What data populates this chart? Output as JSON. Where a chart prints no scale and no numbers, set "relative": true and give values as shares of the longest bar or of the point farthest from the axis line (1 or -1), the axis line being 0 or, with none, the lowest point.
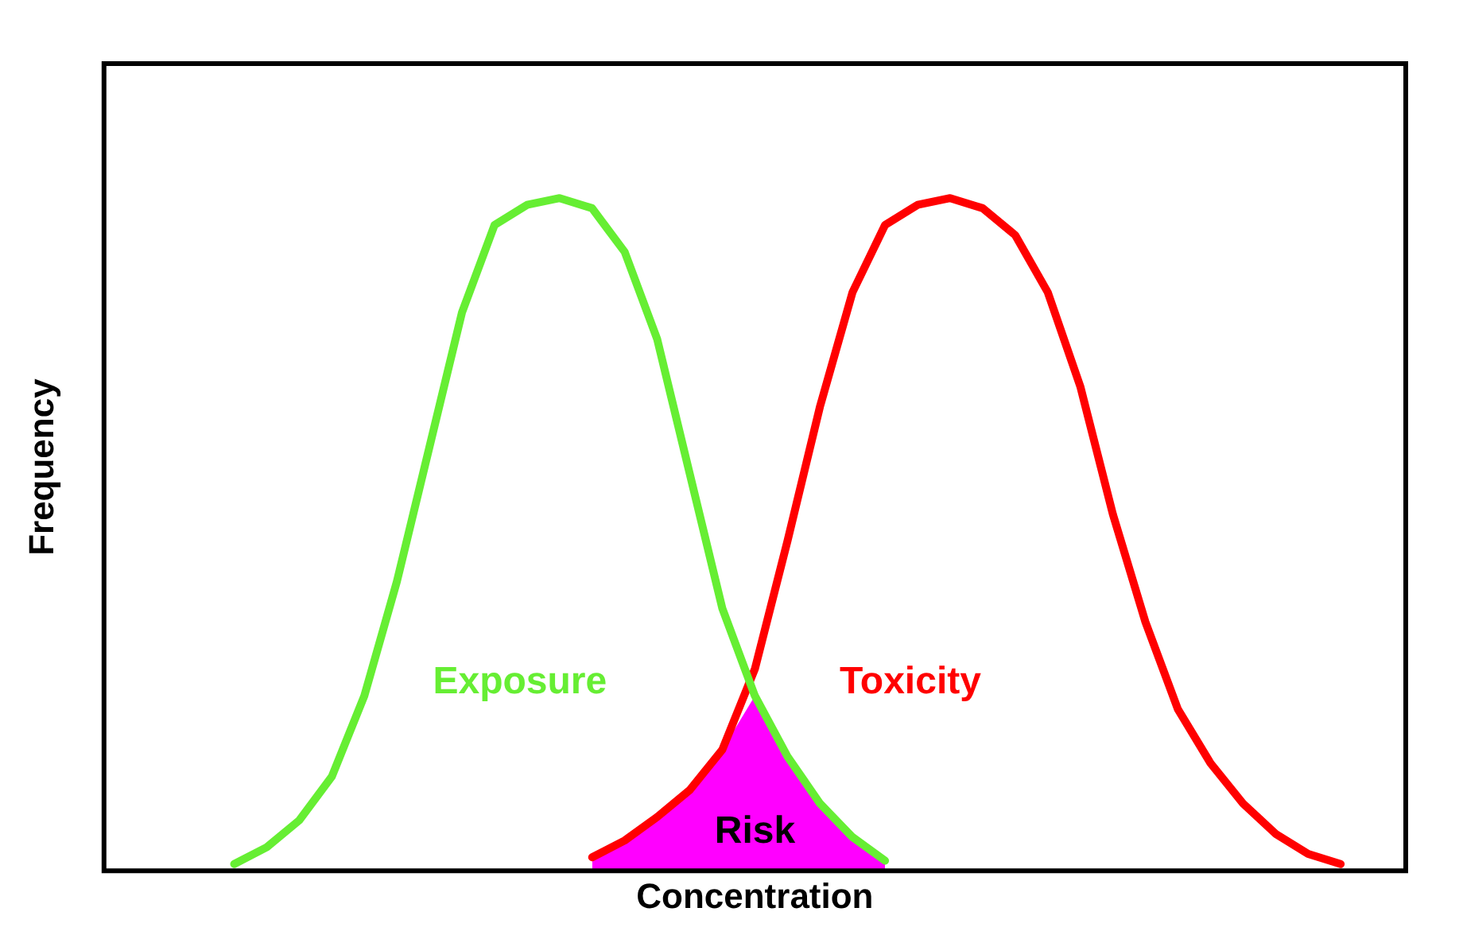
{
  "chart_data": {
    "type": "line",
    "xlabel": "Concentration",
    "ylabel": "Frequency",
    "relative": true,
    "tick_labels": false,
    "marker": "none",
    "categories": [
      null,
      null,
      null,
      null,
      null,
      null,
      null,
      null,
      null,
      null,
      null,
      null,
      null,
      null,
      null,
      null,
      null,
      null,
      null,
      null,
      null,
      null,
      null,
      null,
      null,
      null,
      null,
      null,
      null,
      null,
      null,
      null,
      null,
      null,
      null,
      null,
      null,
      null,
      null,
      null,
      null
    ],
    "series": [
      {
        "name": "Risk",
        "type": "area",
        "color": "#ff00ff",
        "values": [
          null,
          null,
          null,
          null,
          null,
          null,
          null,
          null,
          null,
          null,
          null,
          null,
          null,
          null,
          null,
          0.02,
          0.045,
          0.08,
          0.12,
          0.18,
          0.26,
          0.17,
          0.1,
          0.05,
          0.015,
          null,
          null,
          null,
          null,
          null,
          null,
          null,
          null,
          null,
          null,
          null,
          null,
          null,
          null,
          null,
          null
        ]
      },
      {
        "name": "Exposure",
        "type": "line",
        "color": "#66ee33",
        "values": [
          null,
          null,
          null,
          null,
          0.01,
          0.035,
          0.075,
          0.14,
          0.26,
          0.43,
          0.63,
          0.83,
          0.96,
          0.99,
          1,
          0.985,
          0.92,
          0.79,
          0.59,
          0.39,
          0.26,
          0.17,
          0.1,
          0.05,
          0.015,
          null,
          null,
          null,
          null,
          null,
          null,
          null,
          null,
          null,
          null,
          null,
          null,
          null,
          null,
          null,
          null
        ]
      },
      {
        "name": "Toxicity",
        "type": "line",
        "color": "#ff0000",
        "values": [
          null,
          null,
          null,
          null,
          null,
          null,
          null,
          null,
          null,
          null,
          null,
          null,
          null,
          null,
          null,
          0.02,
          0.045,
          0.08,
          0.12,
          0.18,
          0.3,
          0.49,
          0.69,
          0.86,
          0.96,
          0.99,
          1,
          0.985,
          0.945,
          0.86,
          0.72,
          0.53,
          0.37,
          0.24,
          0.16,
          0.1,
          0.055,
          0.025,
          0.01,
          null,
          null
        ]
      }
    ]
  }
}
